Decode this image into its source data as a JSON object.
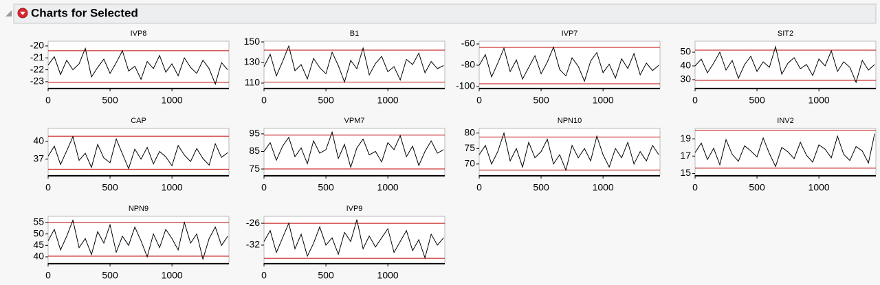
{
  "header": {
    "title": "Charts for Selected"
  },
  "chart_data": [
    {
      "type": "line",
      "title": "IVP8",
      "color": "#000000",
      "limit_color": "#c00000",
      "x": [
        0,
        50,
        100,
        150,
        200,
        250,
        300,
        350,
        400,
        450,
        500,
        550,
        600,
        650,
        700,
        750,
        800,
        850,
        900,
        950,
        1000,
        1050,
        1100,
        1150,
        1200,
        1250,
        1300,
        1350,
        1400,
        1450
      ],
      "values": [
        -21.6,
        -20.9,
        -22.4,
        -21.2,
        -22.0,
        -21.5,
        -20.2,
        -22.6,
        -21.8,
        -21.1,
        -22.3,
        -21.4,
        -20.4,
        -22.1,
        -21.7,
        -22.8,
        -21.3,
        -21.9,
        -20.8,
        -22.2,
        -21.5,
        -22.5,
        -21.0,
        -21.8,
        -22.3,
        -21.2,
        -21.9,
        -23.2,
        -21.4,
        -22.0
      ],
      "control_limits": [
        -23.05,
        -20.4
      ],
      "xlim": [
        0,
        1460
      ],
      "xticks": [
        0,
        500,
        1000
      ],
      "ylim": [
        -23.52,
        -19.6
      ],
      "yticks": [
        -20,
        -21,
        -22,
        -23
      ]
    },
    {
      "type": "line",
      "title": "B1",
      "color": "#000000",
      "limit_color": "#c00000",
      "x": [
        0,
        50,
        100,
        150,
        200,
        250,
        300,
        350,
        400,
        450,
        500,
        550,
        600,
        650,
        700,
        750,
        800,
        850,
        900,
        950,
        1000,
        1050,
        1100,
        1150,
        1200,
        1250,
        1300,
        1350,
        1400,
        1450
      ],
      "values": [
        126,
        138,
        117,
        131,
        146,
        122,
        128,
        114,
        134,
        125,
        119,
        140,
        127,
        111,
        132,
        124,
        144,
        118,
        129,
        136,
        121,
        126,
        113,
        133,
        128,
        139,
        120,
        131,
        124,
        127
      ],
      "control_limits": [
        111,
        142
      ],
      "xlim": [
        0,
        1460
      ],
      "xticks": [
        0,
        500,
        1000
      ],
      "ylim": [
        105.3,
        150.7
      ],
      "yticks": [
        110,
        130,
        150
      ]
    },
    {
      "type": "line",
      "title": "IVP7",
      "color": "#000000",
      "limit_color": "#c00000",
      "x": [
        0,
        50,
        100,
        150,
        200,
        250,
        300,
        350,
        400,
        450,
        500,
        550,
        600,
        650,
        700,
        750,
        800,
        850,
        900,
        950,
        1000,
        1050,
        1100,
        1150,
        1200,
        1250,
        1300,
        1350,
        1400,
        1450
      ],
      "values": [
        -80,
        -70,
        -91,
        -78,
        -64,
        -86,
        -75,
        -93,
        -82,
        -71,
        -88,
        -77,
        -63,
        -84,
        -90,
        -73,
        -81,
        -95,
        -76,
        -68,
        -87,
        -79,
        -92,
        -74,
        -83,
        -69,
        -89,
        -78,
        -85,
        -80
      ],
      "control_limits": [
        -97.4,
        -63.2
      ],
      "xlim": [
        0,
        1460
      ],
      "xticks": [
        0,
        500,
        1000
      ],
      "ylim": [
        -101.3,
        -57.4
      ],
      "yticks": [
        -60,
        -80,
        -100
      ]
    },
    {
      "type": "line",
      "title": "SIT2",
      "color": "#000000",
      "limit_color": "#c00000",
      "x": [
        0,
        50,
        100,
        150,
        200,
        250,
        300,
        350,
        400,
        450,
        500,
        550,
        600,
        650,
        700,
        750,
        800,
        850,
        900,
        950,
        1000,
        1050,
        1100,
        1150,
        1200,
        1250,
        1300,
        1350,
        1400,
        1450
      ],
      "values": [
        40,
        45,
        35,
        42,
        50,
        37,
        44,
        31,
        41,
        47,
        36,
        43,
        39,
        54,
        34,
        42,
        46,
        38,
        41,
        33,
        45,
        40,
        51,
        36,
        43,
        39,
        28,
        44,
        37,
        41
      ],
      "control_limits": [
        29.5,
        51.5
      ],
      "xlim": [
        0,
        1460
      ],
      "xticks": [
        0,
        500,
        1000
      ],
      "ylim": [
        24,
        58
      ],
      "yticks": [
        30,
        40,
        50
      ]
    },
    {
      "type": "line",
      "title": "CAP",
      "color": "#000000",
      "limit_color": "#c00000",
      "x": [
        0,
        50,
        100,
        150,
        200,
        250,
        300,
        350,
        400,
        450,
        500,
        550,
        600,
        650,
        700,
        750,
        800,
        850,
        900,
        950,
        1000,
        1050,
        1100,
        1150,
        1200,
        1250,
        1300,
        1350,
        1400,
        1450
      ],
      "values": [
        37.5,
        39.2,
        36.1,
        38.4,
        40.8,
        36.8,
        38.0,
        35.6,
        39.5,
        37.2,
        36.4,
        40.4,
        37.9,
        35.4,
        38.7,
        37.0,
        39.0,
        36.2,
        38.3,
        37.4,
        35.9,
        39.3,
        37.7,
        36.6,
        38.8,
        37.1,
        36.0,
        39.6,
        37.3,
        38.1
      ],
      "control_limits": [
        35.3,
        40.9
      ],
      "xlim": [
        0,
        1460
      ],
      "xticks": [
        0,
        500,
        1000
      ],
      "ylim": [
        34.3,
        42.2
      ],
      "yticks": [
        37,
        40
      ]
    },
    {
      "type": "line",
      "title": "VPM7",
      "color": "#000000",
      "limit_color": "#c00000",
      "x": [
        0,
        50,
        100,
        150,
        200,
        250,
        300,
        350,
        400,
        450,
        500,
        550,
        600,
        650,
        700,
        750,
        800,
        850,
        900,
        950,
        1000,
        1050,
        1100,
        1150,
        1200,
        1250,
        1300,
        1350,
        1400,
        1450
      ],
      "values": [
        85,
        90,
        80,
        88,
        93,
        82,
        87,
        78,
        91,
        84,
        86,
        96,
        81,
        89,
        76,
        87,
        92,
        83,
        85,
        79,
        90,
        86,
        94,
        82,
        88,
        77,
        85,
        91,
        84,
        86
      ],
      "control_limits": [
        75,
        94.3
      ],
      "xlim": [
        0,
        1460
      ],
      "xticks": [
        0,
        500,
        1000
      ],
      "ylim": [
        71.5,
        98.1
      ],
      "yticks": [
        75,
        85,
        95
      ]
    },
    {
      "type": "line",
      "title": "NPN10",
      "color": "#000000",
      "limit_color": "#c00000",
      "x": [
        0,
        50,
        100,
        150,
        200,
        250,
        300,
        350,
        400,
        450,
        500,
        550,
        600,
        650,
        700,
        750,
        800,
        850,
        900,
        950,
        1000,
        1050,
        1100,
        1150,
        1200,
        1250,
        1300,
        1350,
        1400,
        1450
      ],
      "values": [
        73,
        76,
        70,
        74,
        80,
        71,
        75,
        69,
        77,
        72,
        74,
        78,
        70,
        73,
        68,
        76,
        72,
        75,
        71,
        79,
        73,
        69,
        75,
        72,
        77,
        70,
        74,
        71,
        76,
        73
      ],
      "control_limits": [
        68,
        78.7
      ],
      "xlim": [
        0,
        1460
      ],
      "xticks": [
        0,
        500,
        1000
      ],
      "ylim": [
        66.4,
        81.5
      ],
      "yticks": [
        70,
        75,
        80
      ]
    },
    {
      "type": "line",
      "title": "INV2",
      "color": "#000000",
      "limit_color": "#c00000",
      "x": [
        0,
        50,
        100,
        150,
        200,
        250,
        300,
        350,
        400,
        450,
        500,
        550,
        600,
        650,
        700,
        750,
        800,
        850,
        900,
        950,
        1000,
        1050,
        1100,
        1150,
        1200,
        1250,
        1300,
        1350,
        1400,
        1450
      ],
      "values": [
        17.4,
        18.5,
        16.6,
        17.9,
        16.0,
        18.9,
        17.2,
        16.4,
        18.2,
        17.6,
        16.9,
        19.1,
        17.3,
        15.8,
        18.0,
        17.5,
        16.7,
        18.6,
        17.1,
        16.3,
        18.3,
        17.8,
        16.8,
        19.3,
        17.2,
        16.5,
        18.1,
        17.6,
        16.2,
        19.6
      ],
      "control_limits": [
        15.6,
        20.0
      ],
      "xlim": [
        0,
        1460
      ],
      "xticks": [
        0,
        500,
        1000
      ],
      "ylim": [
        14.8,
        20.2
      ],
      "yticks": [
        15,
        17,
        19
      ]
    },
    {
      "type": "line",
      "title": "NPN9",
      "color": "#000000",
      "limit_color": "#c00000",
      "x": [
        0,
        50,
        100,
        150,
        200,
        250,
        300,
        350,
        400,
        450,
        500,
        550,
        600,
        650,
        700,
        750,
        800,
        850,
        900,
        950,
        1000,
        1050,
        1100,
        1150,
        1200,
        1250,
        1300,
        1350,
        1400,
        1450
      ],
      "values": [
        47,
        52,
        43,
        49,
        56,
        44,
        48,
        41,
        51,
        46,
        54,
        42,
        49,
        45,
        53,
        47,
        40,
        50,
        44,
        52,
        48,
        43,
        55,
        46,
        50,
        39,
        48,
        53,
        45,
        49
      ],
      "control_limits": [
        40.3,
        55
      ],
      "xlim": [
        0,
        1460
      ],
      "xticks": [
        0,
        500,
        1000
      ],
      "ylim": [
        37.3,
        57.7
      ],
      "yticks": [
        40,
        45,
        50,
        55
      ]
    },
    {
      "type": "line",
      "title": "IVP9",
      "color": "#000000",
      "limit_color": "#c00000",
      "x": [
        0,
        50,
        100,
        150,
        200,
        250,
        300,
        350,
        400,
        450,
        500,
        550,
        600,
        650,
        700,
        750,
        800,
        850,
        900,
        950,
        1000,
        1050,
        1100,
        1150,
        1200,
        1250,
        1300,
        1350,
        1400,
        1450
      ],
      "values": [
        -31,
        -28,
        -34,
        -30,
        -26,
        -33,
        -29,
        -35,
        -31.5,
        -27,
        -32,
        -30,
        -34.5,
        -28.5,
        -31,
        -25,
        -33,
        -29.5,
        -32.5,
        -30,
        -27.5,
        -34,
        -31,
        -28,
        -33.5,
        -30.5,
        -35.5,
        -29,
        -32,
        -30
      ],
      "control_limits": [
        -35.6,
        -26
      ],
      "xlim": [
        0,
        1460
      ],
      "xticks": [
        0,
        500,
        1000
      ],
      "ylim": [
        -36.9,
        -24.1
      ],
      "yticks": [
        -26,
        -32
      ]
    }
  ]
}
